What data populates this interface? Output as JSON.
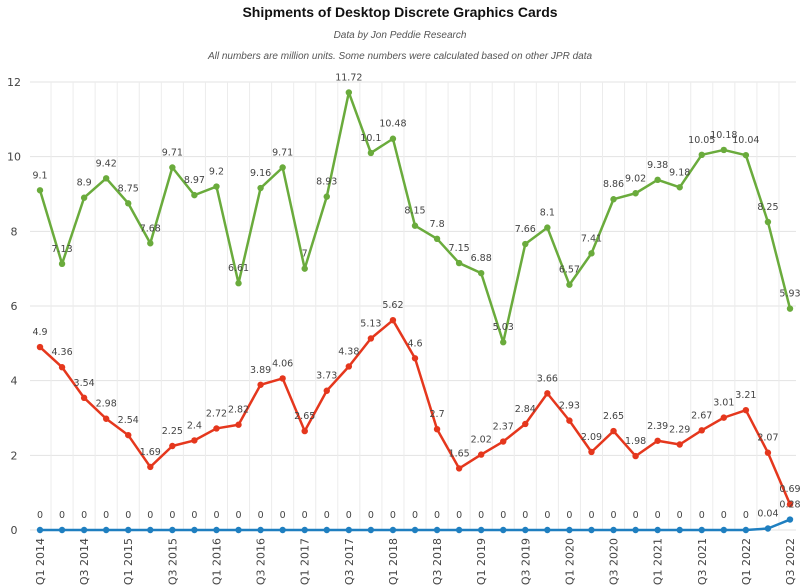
{
  "chart_data": {
    "type": "line",
    "title": "Shipments of Desktop Discrete Graphics Cards",
    "subtitle": "Data by Jon Peddie Research",
    "note": "All numbers are million units. Some numbers were calculated based on other JPR data",
    "xlabel": "",
    "ylabel": "",
    "ylim": [
      0,
      12
    ],
    "yticks": [
      0,
      2,
      4,
      6,
      8,
      10,
      12
    ],
    "grid": true,
    "legend": "none",
    "x_tick_labels": [
      "Q1 2014",
      "Q3 2014",
      "Q1 2015",
      "Q3 2015",
      "Q1 2016",
      "Q3 2016",
      "Q1 2017",
      "Q3 2017",
      "Q1 2018",
      "Q3 2018",
      "Q1 2019",
      "Q3 2019",
      "Q1 2020",
      "Q3 2020",
      "Q1 2021",
      "Q3 2021",
      "Q1 2022",
      "Q3 2022"
    ],
    "x": [
      "Q1 2014",
      "Q2 2014",
      "Q3 2014",
      "Q4 2014",
      "Q1 2015",
      "Q2 2015",
      "Q3 2015",
      "Q4 2015",
      "Q1 2016",
      "Q2 2016",
      "Q3 2016",
      "Q4 2016",
      "Q1 2017",
      "Q2 2017",
      "Q3 2017",
      "Q4 2017",
      "Q1 2018",
      "Q2 2018",
      "Q3 2018",
      "Q4 2018",
      "Q1 2019",
      "Q2 2019",
      "Q3 2019",
      "Q4 2019",
      "Q1 2020",
      "Q2 2020",
      "Q3 2020",
      "Q4 2020",
      "Q1 2021",
      "Q2 2021",
      "Q3 2021",
      "Q4 2021",
      "Q1 2022",
      "Q2 2022",
      "Q3 2022"
    ],
    "series": [
      {
        "color": "#6aab3c",
        "values": [
          9.1,
          7.13,
          8.9,
          9.42,
          8.75,
          7.68,
          9.71,
          8.97,
          9.2,
          6.61,
          9.16,
          9.71,
          7,
          8.93,
          11.72,
          10.1,
          10.48,
          8.15,
          7.8,
          7.15,
          6.88,
          5.03,
          7.66,
          8.1,
          6.57,
          7.41,
          8.86,
          9.02,
          9.38,
          9.18,
          10.05,
          10.18,
          10.04,
          8.25,
          5.93
        ]
      },
      {
        "color": "#e5371d",
        "values": [
          4.9,
          4.36,
          3.54,
          2.98,
          2.54,
          1.69,
          2.25,
          2.4,
          2.72,
          2.82,
          3.89,
          4.06,
          2.65,
          3.73,
          4.38,
          5.13,
          5.62,
          4.6,
          2.7,
          1.65,
          2.02,
          2.37,
          2.84,
          3.66,
          2.93,
          2.09,
          2.65,
          1.98,
          2.39,
          2.29,
          2.67,
          3.01,
          3.21,
          2.07,
          0.69
        ]
      },
      {
        "color": "#1f7fc0",
        "values": [
          0,
          0,
          0,
          0,
          0,
          0,
          0,
          0,
          0,
          0,
          0,
          0,
          0,
          0,
          0,
          0,
          0,
          0,
          0,
          0,
          0,
          0,
          0,
          0,
          0,
          0,
          0,
          0,
          0,
          0,
          0,
          0,
          0,
          0.04,
          0.28
        ]
      }
    ]
  }
}
